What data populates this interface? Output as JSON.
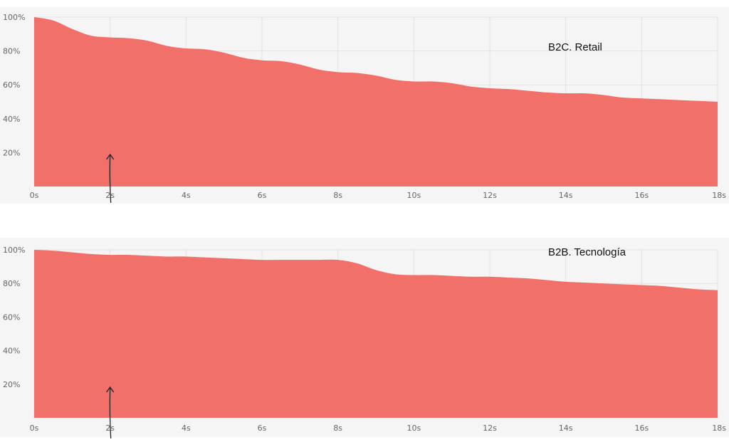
{
  "chart_data": [
    {
      "type": "area",
      "title": "B2C. Retail",
      "xlabel": "",
      "ylabel": "",
      "x_ticks": [
        "0s",
        "2s",
        "4s",
        "6s",
        "8s",
        "10s",
        "12s",
        "14s",
        "16s",
        "18s"
      ],
      "y_ticks": [
        "20%",
        "40%",
        "60%",
        "80%",
        "100%"
      ],
      "xlim": [
        0,
        18
      ],
      "ylim": [
        0,
        100
      ],
      "grid": true,
      "color": "#f2706a",
      "marker_x": 2,
      "x": [
        0,
        0.5,
        1,
        1.5,
        2,
        2.5,
        3,
        3.5,
        4,
        4.5,
        5,
        5.5,
        6,
        6.5,
        7,
        7.5,
        8,
        8.5,
        9,
        9.5,
        10,
        10.5,
        11,
        11.5,
        12,
        12.5,
        13,
        13.5,
        14,
        14.5,
        15,
        15.5,
        16,
        16.5,
        17,
        17.5,
        18
      ],
      "values": [
        100,
        98,
        93,
        89,
        88,
        87.5,
        86,
        83,
        81.5,
        81,
        79,
        76,
        74.5,
        74,
        72,
        69,
        67.5,
        67,
        65.5,
        63,
        62,
        62,
        61,
        59,
        58,
        57.5,
        56.5,
        55.5,
        55,
        55,
        54,
        52.5,
        52,
        51.5,
        51,
        50.5,
        50
      ]
    },
    {
      "type": "area",
      "title": "B2B. Tecnología",
      "xlabel": "",
      "ylabel": "",
      "x_ticks": [
        "0s",
        "2s",
        "4s",
        "6s",
        "8s",
        "10s",
        "12s",
        "14s",
        "16s",
        "18s"
      ],
      "y_ticks": [
        "20%",
        "40%",
        "60%",
        "80%",
        "100%"
      ],
      "xlim": [
        0,
        18
      ],
      "ylim": [
        0,
        100
      ],
      "grid": true,
      "color": "#f2706a",
      "marker_x": 2,
      "x": [
        0,
        0.5,
        1,
        1.5,
        2,
        2.5,
        3,
        3.5,
        4,
        4.5,
        5,
        5.5,
        6,
        6.5,
        7,
        7.5,
        8,
        8.5,
        9,
        9.5,
        10,
        10.5,
        11,
        11.5,
        12,
        12.5,
        13,
        13.5,
        14,
        14.5,
        15,
        15.5,
        16,
        16.5,
        17,
        17.5,
        18
      ],
      "values": [
        100,
        99.5,
        98.5,
        97.5,
        97,
        97,
        96.5,
        96,
        96,
        95.5,
        95,
        94.5,
        94,
        94,
        94,
        94,
        94,
        92,
        88,
        85.5,
        85,
        85,
        84.5,
        84,
        84,
        83.5,
        83,
        82,
        81,
        80.5,
        80,
        79.5,
        79,
        78.5,
        77.5,
        76.5,
        76
      ]
    }
  ]
}
